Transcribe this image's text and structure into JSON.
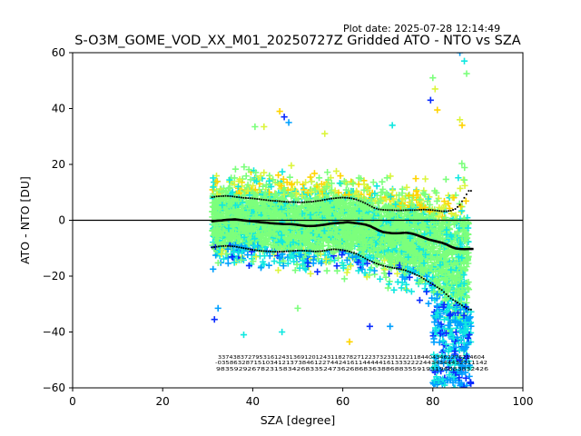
{
  "figure": {
    "plot_date": "Plot date: 2025-07-28 12:14:49",
    "title": "S-O3M_GOME_VOD_XX_M01_20250727Z Gridded ATO - NTO vs SZA"
  },
  "chart_data": {
    "type": "scatter",
    "title": "S-O3M_GOME_VOD_XX_M01_20250727Z Gridded ATO - NTO vs SZA",
    "xlabel": "SZA [degree]",
    "ylabel": "ATO - NTO [DU]",
    "xlim": [
      0,
      100
    ],
    "ylim": [
      -60,
      60
    ],
    "xticks": [
      "0",
      "20",
      "40",
      "60",
      "80",
      "100"
    ],
    "yticks": [
      "60",
      "40",
      "20",
      "0",
      "−20",
      "−40",
      "−60"
    ],
    "grid": false,
    "zero_line": 0,
    "marker": "+",
    "color_scale": [
      "#0a2cff",
      "#00a0ff",
      "#10e8e0",
      "#7cff7c",
      "#dcf53c",
      "#ffd400"
    ],
    "point_cloud": {
      "sza_range": [
        31,
        88
      ],
      "core_spread": [
        [
          31,
          -20,
          20
        ],
        [
          40,
          -20,
          21
        ],
        [
          50,
          -22,
          20
        ],
        [
          60,
          -22,
          21
        ],
        [
          70,
          -27,
          18
        ],
        [
          78,
          -32,
          17
        ],
        [
          82,
          -45,
          18
        ],
        [
          85,
          -57,
          22
        ],
        [
          88,
          -58,
          25
        ]
      ],
      "outliers": [
        [
          31.5,
          -35.5
        ],
        [
          32.3,
          -31.5
        ],
        [
          38,
          -41
        ],
        [
          40.5,
          33.5
        ],
        [
          42.5,
          33.5
        ],
        [
          46,
          39
        ],
        [
          47,
          37
        ],
        [
          48,
          35
        ],
        [
          46.5,
          -40
        ],
        [
          50,
          -31.5
        ],
        [
          56,
          31
        ],
        [
          61.5,
          -43.5
        ],
        [
          66,
          -38
        ],
        [
          70.5,
          -38
        ],
        [
          71,
          34
        ],
        [
          80,
          51
        ],
        [
          80.5,
          47
        ],
        [
          81,
          39.5
        ],
        [
          79.5,
          43
        ],
        [
          86,
          60
        ],
        [
          87,
          57
        ],
        [
          87.5,
          52.5
        ],
        [
          86,
          36
        ],
        [
          86.5,
          34
        ]
      ]
    },
    "series": [
      {
        "x": [
          31,
          32,
          33,
          34,
          35,
          36,
          37,
          38,
          39,
          40,
          41,
          42,
          43,
          44,
          45,
          46,
          47,
          48,
          49,
          50,
          51,
          52,
          53,
          54,
          55,
          56,
          57,
          58,
          59,
          60,
          61,
          62,
          63,
          64,
          65,
          66,
          67,
          68,
          69,
          70,
          71,
          72,
          73,
          74,
          75,
          76,
          77,
          78,
          79,
          80,
          81,
          82,
          83,
          84,
          85,
          86,
          87,
          88
        ],
        "y": [
          -0.3,
          -0.1,
          0,
          0.2,
          0.3,
          0.4,
          0.2,
          0,
          -0.2,
          -0.3,
          -0.5,
          -0.7,
          -0.8,
          -1,
          -1.1,
          -1.2,
          -1.3,
          -1.3,
          -1.4,
          -1.6,
          -1.8,
          -2,
          -2,
          -1.9,
          -1.7,
          -1.5,
          -1.2,
          -1,
          -0.9,
          -0.8,
          -0.6,
          -0.8,
          -1,
          -1.2,
          -1.5,
          -2,
          -2.8,
          -3.6,
          -4.2,
          -4.4,
          -4.6,
          -4.6,
          -4.5,
          -4.4,
          -4.6,
          -5,
          -5.6,
          -6.2,
          -6.8,
          -7.2,
          -7.6,
          -8,
          -8.6,
          -9.4,
          -10,
          -10.2,
          -10.3,
          -10.2
        ]
      },
      {
        "x": [
          31,
          32,
          33,
          34,
          35,
          36,
          37,
          38,
          39,
          40,
          41,
          42,
          43,
          44,
          45,
          46,
          47,
          48,
          49,
          50,
          51,
          52,
          53,
          54,
          55,
          56,
          57,
          58,
          59,
          60,
          61,
          62,
          63,
          64,
          65,
          66,
          67,
          68,
          69,
          70,
          71,
          72,
          73,
          74,
          75,
          76,
          77,
          78,
          79,
          80,
          81,
          82,
          83,
          84,
          85,
          86,
          87,
          88
        ],
        "y": [
          8.2,
          8.5,
          8.6,
          8.7,
          8.6,
          8.4,
          8.2,
          8,
          7.9,
          7.8,
          7.6,
          7.4,
          7.2,
          7,
          6.9,
          6.8,
          6.6,
          6.5,
          6.5,
          6.4,
          6.4,
          6.5,
          6.6,
          6.8,
          7,
          7.3,
          7.6,
          7.8,
          8,
          8.1,
          8,
          7.8,
          7.4,
          6.8,
          6.1,
          5.2,
          4.4,
          3.9,
          3.7,
          3.6,
          3.6,
          3.5,
          3.5,
          3.6,
          3.6,
          3.6,
          3.7,
          3.8,
          3.7,
          3.6,
          3.4,
          3.2,
          3.2,
          3.4,
          4,
          5.5,
          8,
          10.5
        ]
      },
      {
        "x": [
          31,
          32,
          33,
          34,
          35,
          36,
          37,
          38,
          39,
          40,
          41,
          42,
          43,
          44,
          45,
          46,
          47,
          48,
          49,
          50,
          51,
          52,
          53,
          54,
          55,
          56,
          57,
          58,
          59,
          60,
          61,
          62,
          63,
          64,
          65,
          66,
          67,
          68,
          69,
          70,
          71,
          72,
          73,
          74,
          75,
          76,
          77,
          78,
          79,
          80,
          81,
          82,
          83,
          84,
          85,
          86,
          87,
          88
        ],
        "y": [
          -9.8,
          -9.5,
          -9.3,
          -9.2,
          -9.3,
          -9.4,
          -9.7,
          -10,
          -10.3,
          -10.6,
          -10.8,
          -11,
          -11.1,
          -11.2,
          -11.3,
          -11.3,
          -11.2,
          -11.1,
          -11,
          -10.9,
          -10.9,
          -11,
          -11.1,
          -11.2,
          -11.1,
          -10.9,
          -10.6,
          -10.4,
          -10.5,
          -10.7,
          -11,
          -11.5,
          -12,
          -12.8,
          -13.7,
          -14.5,
          -15.2,
          -15.8,
          -16.3,
          -16.7,
          -17,
          -17.3,
          -17.6,
          -18,
          -18.6,
          -19.3,
          -20,
          -21,
          -22,
          -23,
          -24,
          -25,
          -26.5,
          -28,
          -29,
          -30,
          -31,
          -32
        ]
      }
    ],
    "count_rows": [
      "33743837279531612431369120124311827827122373233122211844043462276214604",
      "-0358632871510341213738461227442416114444416133322224434344432311142",
      "9835929267823158342683352473626868363886883559193196883832426"
    ]
  }
}
